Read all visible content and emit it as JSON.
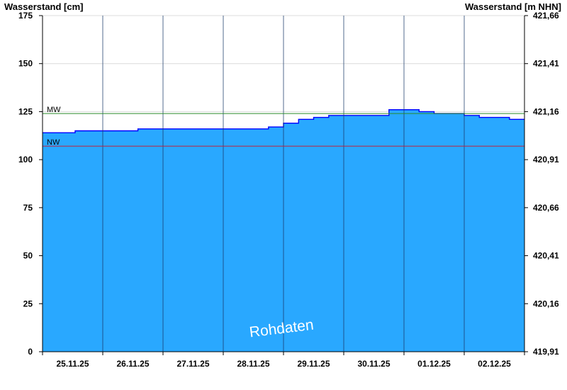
{
  "chart_data": {
    "type": "area",
    "title": "",
    "ylabel_left": "Wasserstand [cm]",
    "ylabel_right": "Wasserstand [m NHN]",
    "ylim": [
      0,
      175
    ],
    "yticks_left": [
      0,
      25,
      50,
      75,
      100,
      125,
      150,
      175
    ],
    "yticks_right": [
      "419,91",
      "420,16",
      "420,41",
      "420,66",
      "420,91",
      "421,16",
      "421,41",
      "421,66"
    ],
    "xlim": [
      "25.11.25 00:00",
      "03.12.25 00:00"
    ],
    "x_labels": [
      "25.11.25",
      "26.11.25",
      "27.11.25",
      "28.11.25",
      "29.11.25",
      "30.11.25",
      "01.12.25",
      "02.12.25"
    ],
    "grid": "horizontal lines at y ticks, vertical lines at day boundaries",
    "watermark": "Rohdaten",
    "fill_color": "#29a8ff",
    "line_color": "#0000ff",
    "reference_lines": [
      {
        "label": "MW",
        "value": 124,
        "color": "#2a8a2a"
      },
      {
        "label": "NW",
        "value": 107,
        "color": "#c0203a"
      }
    ],
    "series": [
      {
        "x": [
          "25.11.25 00:00",
          "25.11.25 12:00",
          "25.11.25 13:00",
          "26.11.25 00:00",
          "26.11.25 12:00",
          "26.11.25 14:00",
          "27.11.25 00:00",
          "27.11.25 12:00",
          "28.11.25 00:00",
          "28.11.25 12:00",
          "28.11.25 18:00",
          "29.11.25 00:00",
          "29.11.25 06:00",
          "29.11.25 12:00",
          "29.11.25 18:00",
          "30.11.25 00:00",
          "30.11.25 12:00",
          "30.11.25 18:00",
          "01.12.25 00:00",
          "01.12.25 06:00",
          "01.12.25 12:00",
          "01.12.25 18:00",
          "02.12.25 00:00",
          "02.12.25 06:00",
          "02.12.25 12:00",
          "02.12.25 18:00",
          "03.12.25 00:00"
        ],
        "y": [
          114,
          114,
          115,
          115,
          115,
          116,
          116,
          116,
          116,
          116,
          117,
          119,
          121,
          122,
          123,
          123,
          123,
          126,
          126,
          125,
          124,
          124,
          123,
          122,
          122,
          121,
          121
        ]
      }
    ]
  }
}
